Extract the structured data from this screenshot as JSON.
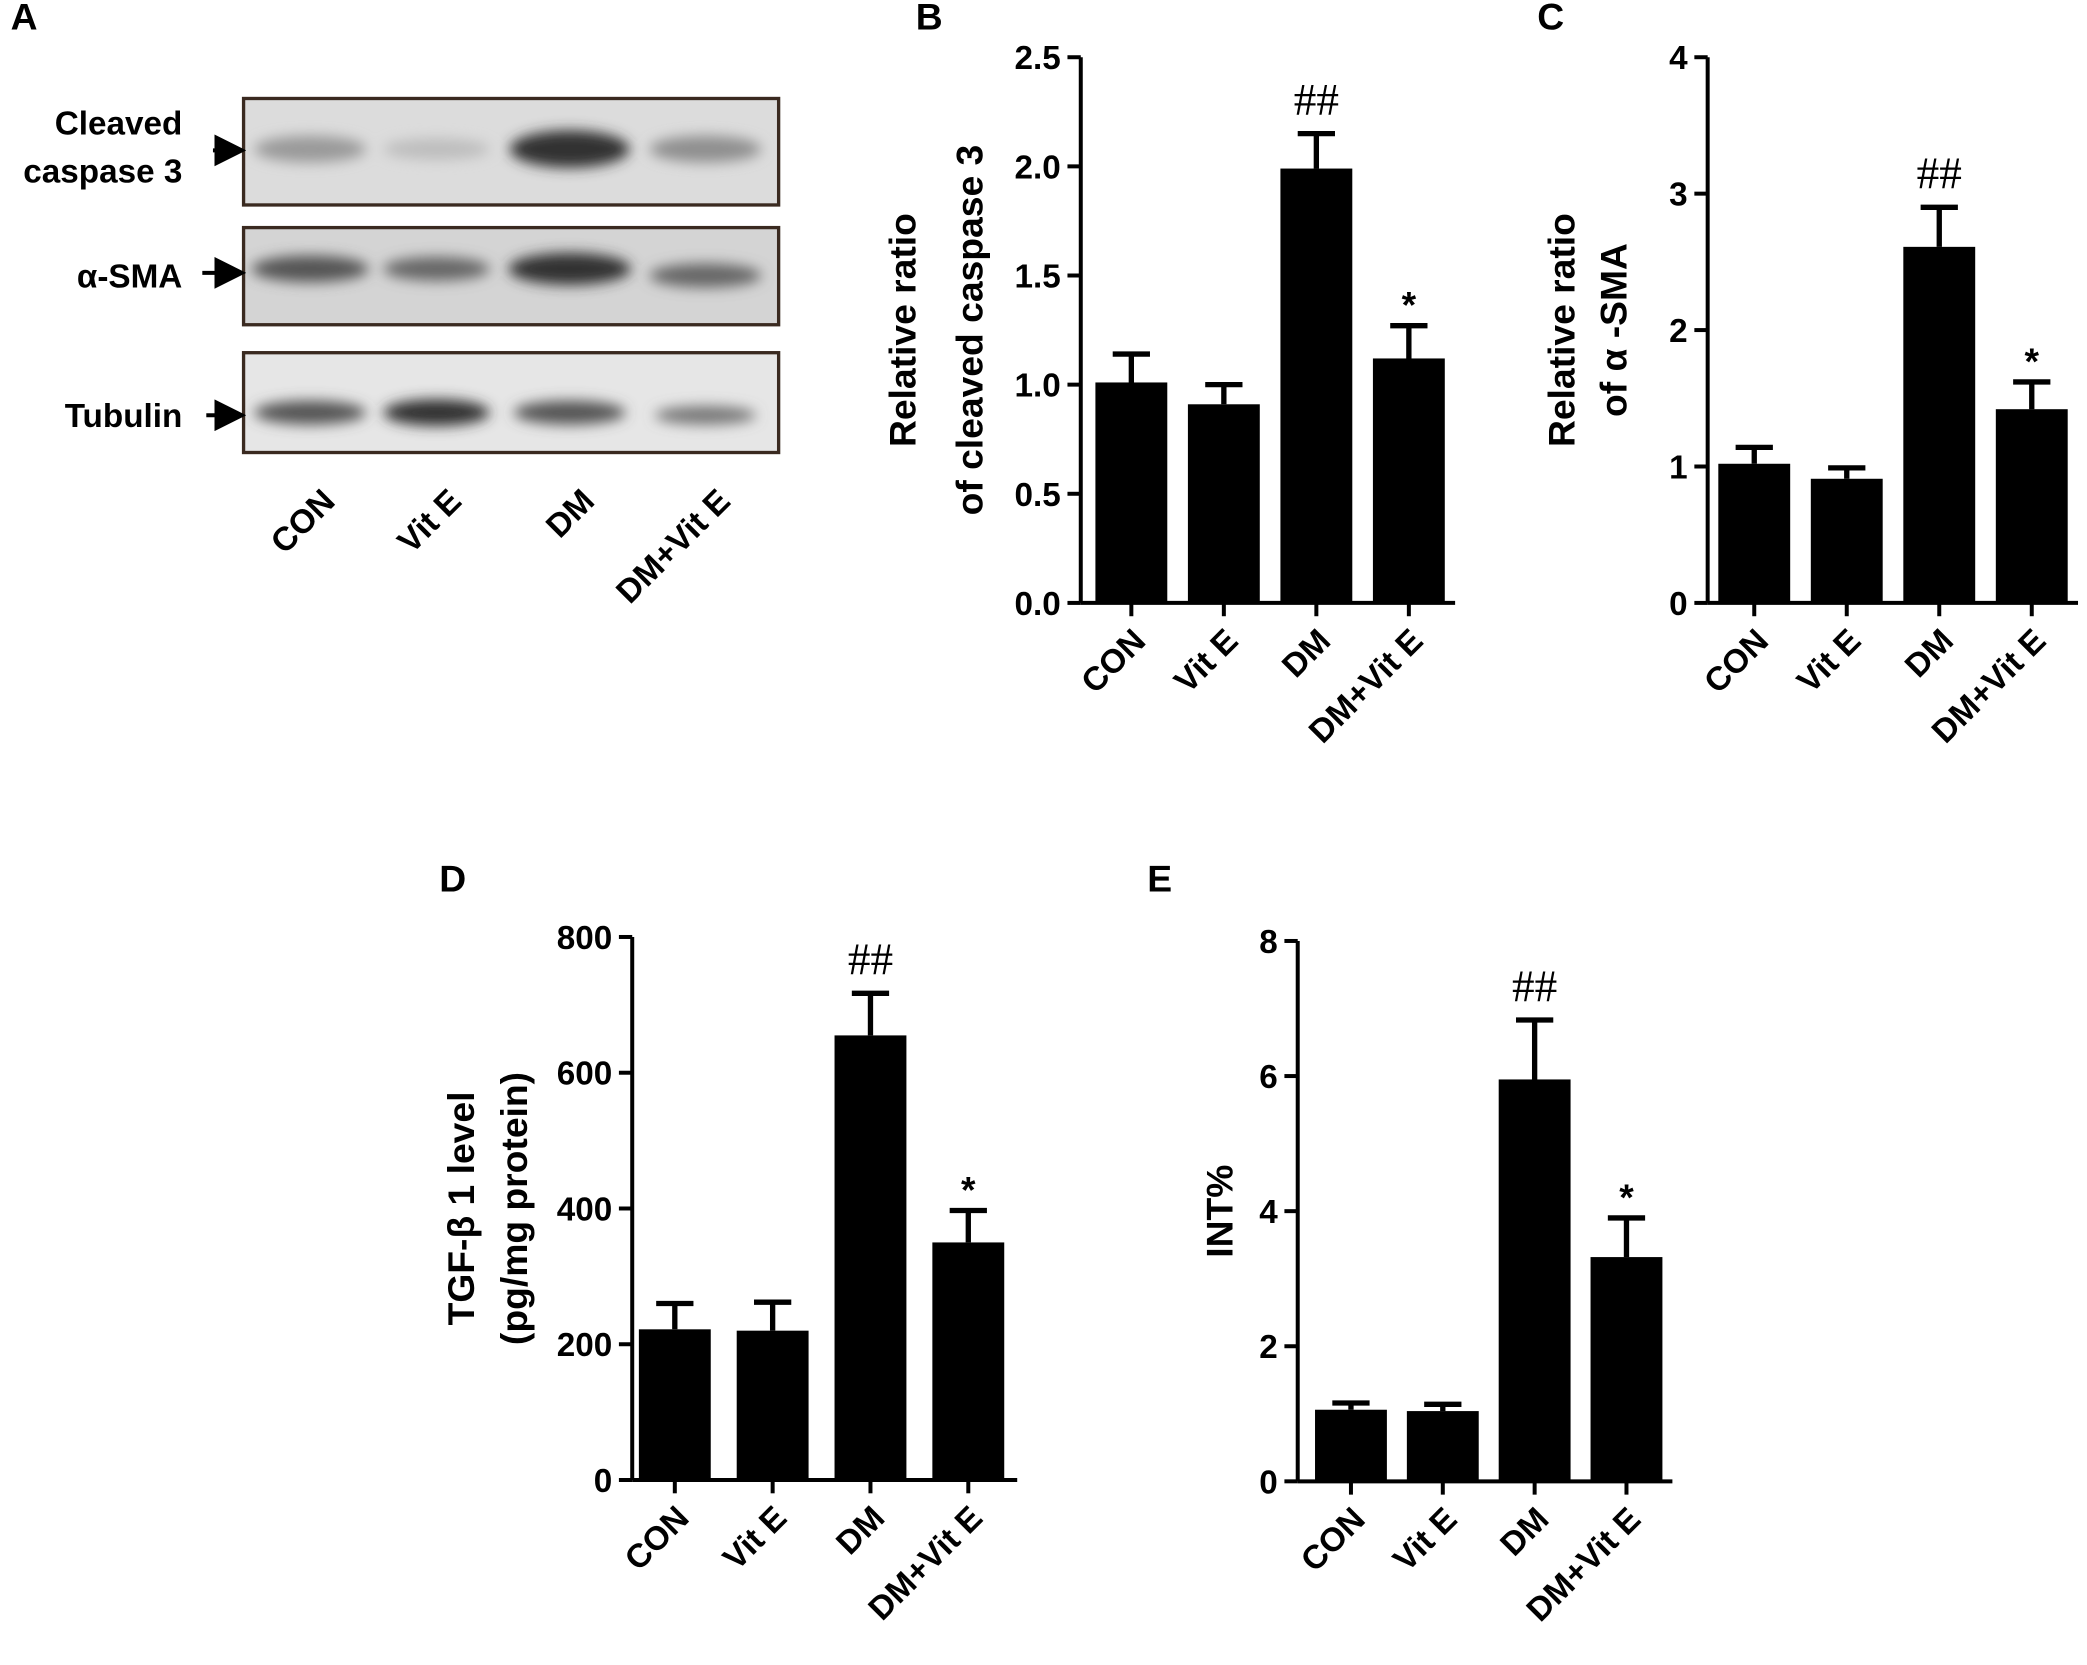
{
  "blot": {
    "label": "A",
    "band_labels": [
      [
        "Cleaved",
        "caspase 3"
      ],
      [
        "α-SMA"
      ],
      [
        "Tubulin"
      ]
    ],
    "lanes": [
      "CON",
      "Vit E",
      "DM",
      "DM+Vit E"
    ]
  },
  "chart_data": [
    {
      "type": "bar",
      "label": "B",
      "ylabel": [
        "Relative ratio",
        "of cleaved caspase 3"
      ],
      "categories": [
        "CON",
        "Vit E",
        "DM",
        "DM+Vit E"
      ],
      "values": [
        1.01,
        0.91,
        1.99,
        1.12
      ],
      "errors": [
        0.13,
        0.09,
        0.16,
        0.15
      ],
      "bar_labels": [
        null,
        null,
        "##",
        "*"
      ],
      "color": "#000000",
      "ylim": [
        0,
        2.5
      ],
      "yticks": [
        {
          "value": 0,
          "label": "0.0"
        },
        0.5,
        {
          "value": 1,
          "label": "1.0"
        },
        1.5,
        {
          "value": 2,
          "label": "2.0"
        },
        2.5
      ]
    },
    {
      "type": "bar",
      "label": "C",
      "ylabel": [
        "Relative ratio",
        "of α -SMA"
      ],
      "categories": [
        "CON",
        "Vit E",
        "DM",
        "DM+Vit E"
      ],
      "values": [
        1.02,
        0.91,
        2.61,
        1.42
      ],
      "errors": [
        0.12,
        0.08,
        0.29,
        0.2
      ],
      "bar_labels": [
        null,
        null,
        "##",
        "*"
      ],
      "color": "#000000",
      "ylim": [
        0,
        4
      ],
      "yticks": [
        0,
        1,
        2,
        3,
        4
      ]
    },
    {
      "type": "bar",
      "label": "D",
      "ylabel": [
        "TGF-β 1 level",
        "(pg/mg protein)"
      ],
      "categories": [
        "CON",
        "Vit E",
        "DM",
        "DM+Vit E"
      ],
      "values": [
        222,
        220,
        655,
        350
      ],
      "errors": [
        38,
        42,
        62,
        47
      ],
      "bar_labels": [
        null,
        null,
        "##",
        "*"
      ],
      "color": "#000000",
      "ylim": [
        0,
        800
      ],
      "yticks": [
        0,
        200,
        400,
        600,
        800
      ]
    },
    {
      "type": "bar",
      "label": "E",
      "ylabel": [
        "INT%"
      ],
      "categories": [
        "CON",
        "Vit E",
        "DM",
        "DM+Vit E"
      ],
      "values": [
        1.06,
        1.04,
        5.95,
        3.32
      ],
      "errors": [
        0.1,
        0.1,
        0.88,
        0.58
      ],
      "bar_labels": [
        null,
        null,
        "##",
        "*"
      ],
      "color": "#000000",
      "ylim": [
        0,
        8
      ],
      "yticks": [
        0,
        2,
        4,
        6,
        8
      ]
    }
  ]
}
